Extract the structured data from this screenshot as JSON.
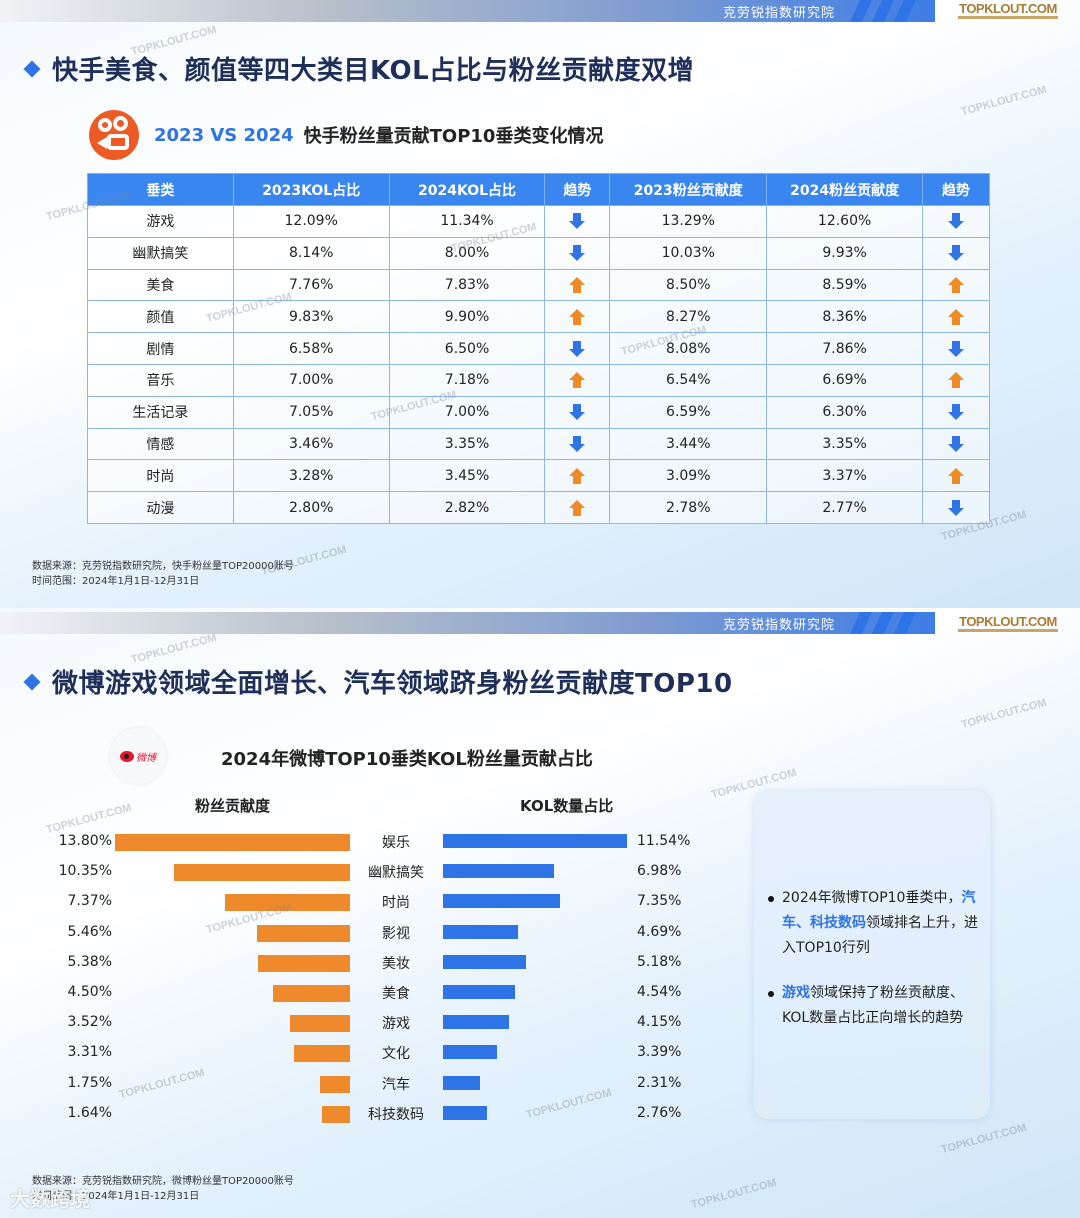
{
  "header": {
    "org_name": "克劳锐指数研究院",
    "brand": "TOPKLOUT.COM",
    "watermark": "TOPKLOUT.COM"
  },
  "slide1": {
    "headline": "快手美食、颜值等四大类目KOL占比与粉丝贡献度双增",
    "subtitle_blue": "2023 VS 2024",
    "subtitle_black": "快手粉丝量贡献TOP10垂类变化情况",
    "logo": "kuaishou-logo",
    "table": {
      "headers": [
        "垂类",
        "2023KOL占比",
        "2024KOL占比",
        "趋势",
        "2023粉丝贡献度",
        "2024粉丝贡献度",
        "趋势"
      ],
      "rows": [
        {
          "cat": "游戏",
          "kol23": "12.09%",
          "kol24": "11.34%",
          "t1": "down",
          "fan23": "13.29%",
          "fan24": "12.60%",
          "t2": "down"
        },
        {
          "cat": "幽默搞笑",
          "kol23": "8.14%",
          "kol24": "8.00%",
          "t1": "down",
          "fan23": "10.03%",
          "fan24": "9.93%",
          "t2": "down"
        },
        {
          "cat": "美食",
          "kol23": "7.76%",
          "kol24": "7.83%",
          "t1": "up",
          "fan23": "8.50%",
          "fan24": "8.59%",
          "t2": "up"
        },
        {
          "cat": "颜值",
          "kol23": "9.83%",
          "kol24": "9.90%",
          "t1": "up",
          "fan23": "8.27%",
          "fan24": "8.36%",
          "t2": "up"
        },
        {
          "cat": "剧情",
          "kol23": "6.58%",
          "kol24": "6.50%",
          "t1": "down",
          "fan23": "8.08%",
          "fan24": "7.86%",
          "t2": "down"
        },
        {
          "cat": "音乐",
          "kol23": "7.00%",
          "kol24": "7.18%",
          "t1": "up",
          "fan23": "6.54%",
          "fan24": "6.69%",
          "t2": "up"
        },
        {
          "cat": "生活记录",
          "kol23": "7.05%",
          "kol24": "7.00%",
          "t1": "down",
          "fan23": "6.59%",
          "fan24": "6.30%",
          "t2": "down"
        },
        {
          "cat": "情感",
          "kol23": "3.46%",
          "kol24": "3.35%",
          "t1": "down",
          "fan23": "3.44%",
          "fan24": "3.35%",
          "t2": "down"
        },
        {
          "cat": "时尚",
          "kol23": "3.28%",
          "kol24": "3.45%",
          "t1": "up",
          "fan23": "3.09%",
          "fan24": "3.37%",
          "t2": "up"
        },
        {
          "cat": "动漫",
          "kol23": "2.80%",
          "kol24": "2.82%",
          "t1": "up",
          "fan23": "2.78%",
          "fan24": "2.77%",
          "t2": "down"
        }
      ]
    },
    "source_line1": "数据来源：克劳锐指数研究院，快手粉丝量TOP20000账号",
    "source_line2": "时间范围：2024年1月1日-12月31日"
  },
  "slide2": {
    "headline": "微博游戏领域全面增长、汽车领域跻身粉丝贡献度TOP10",
    "logo_text": "微博",
    "chart_title": "2024年微博TOP10垂类KOL粉丝量贡献占比",
    "left_title": "粉丝贡献度",
    "right_title": "KOL数量占比",
    "note": {
      "b1_pre": "2024年微博TOP10垂类中，",
      "b1_hl": "汽车、科技数码",
      "b1_post": "领域排名上升，进入TOP10行列",
      "b2_hl": "游戏",
      "b2_post": "领域保持了粉丝贡献度、KOL数量占比正向增长的趋势"
    },
    "source_line1": "数据来源：克劳锐指数研究院，微博粉丝量TOP20000账号",
    "source_line2": "时间范围：2024年1月1日-12月31日"
  },
  "overlay": "大数跨境",
  "colors": {
    "accent_blue": "#2f74e6",
    "table_header": "#3a86f0",
    "orange": "#ef8a2c",
    "title_navy": "#1f2f5a"
  },
  "chart_data": [
    {
      "type": "table",
      "title": "2023 VS 2024 快手粉丝量贡献TOP10垂类变化情况",
      "columns": [
        "垂类",
        "2023KOL占比",
        "2024KOL占比",
        "趋势",
        "2023粉丝贡献度",
        "2024粉丝贡献度",
        "趋势"
      ],
      "rows": [
        [
          "游戏",
          12.09,
          11.34,
          "down",
          13.29,
          12.6,
          "down"
        ],
        [
          "幽默搞笑",
          8.14,
          8.0,
          "down",
          10.03,
          9.93,
          "down"
        ],
        [
          "美食",
          7.76,
          7.83,
          "up",
          8.5,
          8.59,
          "up"
        ],
        [
          "颜值",
          9.83,
          9.9,
          "up",
          8.27,
          8.36,
          "up"
        ],
        [
          "剧情",
          6.58,
          6.5,
          "down",
          8.08,
          7.86,
          "down"
        ],
        [
          "音乐",
          7.0,
          7.18,
          "up",
          6.54,
          6.69,
          "up"
        ],
        [
          "生活记录",
          7.05,
          7.0,
          "down",
          6.59,
          6.3,
          "down"
        ],
        [
          "情感",
          3.46,
          3.35,
          "down",
          3.44,
          3.35,
          "down"
        ],
        [
          "时尚",
          3.28,
          3.45,
          "up",
          3.09,
          3.37,
          "up"
        ],
        [
          "动漫",
          2.8,
          2.82,
          "up",
          2.78,
          2.77,
          "down"
        ]
      ]
    },
    {
      "type": "bar",
      "orientation": "horizontal-butterfly",
      "title": "2024年微博TOP10垂类KOL粉丝量贡献占比",
      "categories": [
        "娱乐",
        "幽默搞笑",
        "时尚",
        "影视",
        "美妆",
        "美食",
        "游戏",
        "文化",
        "汽车",
        "科技数码"
      ],
      "series": [
        {
          "name": "粉丝贡献度",
          "color": "#ef8a2c",
          "values": [
            13.8,
            10.35,
            7.37,
            5.46,
            5.38,
            4.5,
            3.52,
            3.31,
            1.75,
            1.64
          ],
          "labels": [
            "13.80%",
            "10.35%",
            "7.37%",
            "5.46%",
            "5.38%",
            "4.50%",
            "3.52%",
            "3.31%",
            "1.75%",
            "1.64%"
          ]
        },
        {
          "name": "KOL数量占比",
          "color": "#2f74e6",
          "values": [
            11.54,
            6.98,
            7.35,
            4.69,
            5.18,
            4.54,
            4.15,
            3.39,
            2.31,
            2.76
          ],
          "labels": [
            "11.54%",
            "6.98%",
            "7.35%",
            "4.69%",
            "5.18%",
            "4.54%",
            "4.15%",
            "3.39%",
            "2.31%",
            "2.76%"
          ]
        }
      ],
      "xlabel": "",
      "ylabel": "",
      "grid": false,
      "legend": "column titles above each side"
    }
  ]
}
